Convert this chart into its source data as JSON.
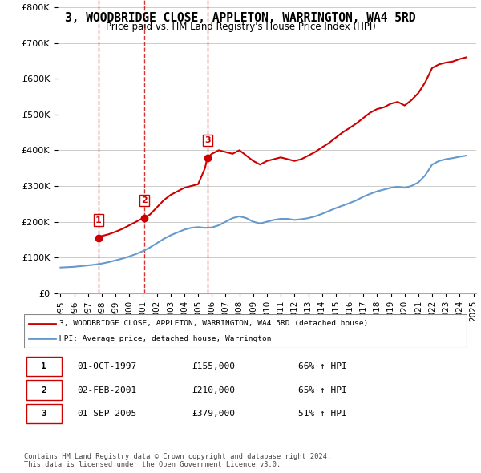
{
  "title": "3, WOODBRIDGE CLOSE, APPLETON, WARRINGTON, WA4 5RD",
  "subtitle": "Price paid vs. HM Land Registry's House Price Index (HPI)",
  "title_fontsize": 11,
  "subtitle_fontsize": 9,
  "sale_dates": [
    1997.75,
    2001.08,
    2005.67
  ],
  "sale_prices": [
    155000,
    210000,
    379000
  ],
  "sale_labels": [
    "1",
    "2",
    "3"
  ],
  "red_line_label": "3, WOODBRIDGE CLOSE, APPLETON, WARRINGTON, WA4 5RD (detached house)",
  "blue_line_label": "HPI: Average price, detached house, Warrington",
  "hpi_x": [
    1995,
    1995.5,
    1996,
    1996.5,
    1997,
    1997.5,
    1998,
    1998.5,
    1999,
    1999.5,
    2000,
    2000.5,
    2001,
    2001.5,
    2002,
    2002.5,
    2003,
    2003.5,
    2004,
    2004.5,
    2005,
    2005.5,
    2006,
    2006.5,
    2007,
    2007.5,
    2008,
    2008.5,
    2009,
    2009.5,
    2010,
    2010.5,
    2011,
    2011.5,
    2012,
    2012.5,
    2013,
    2013.5,
    2014,
    2014.5,
    2015,
    2015.5,
    2016,
    2016.5,
    2017,
    2017.5,
    2018,
    2018.5,
    2019,
    2019.5,
    2020,
    2020.5,
    2021,
    2021.5,
    2022,
    2022.5,
    2023,
    2023.5,
    2024,
    2024.5
  ],
  "hpi_y": [
    72000,
    73000,
    74000,
    76000,
    78000,
    80000,
    83000,
    87000,
    92000,
    97000,
    103000,
    110000,
    118000,
    128000,
    140000,
    152000,
    162000,
    170000,
    178000,
    183000,
    185000,
    183000,
    184000,
    190000,
    200000,
    210000,
    215000,
    210000,
    200000,
    195000,
    200000,
    205000,
    208000,
    208000,
    205000,
    207000,
    210000,
    215000,
    222000,
    230000,
    238000,
    245000,
    252000,
    260000,
    270000,
    278000,
    285000,
    290000,
    295000,
    298000,
    295000,
    300000,
    310000,
    330000,
    360000,
    370000,
    375000,
    378000,
    382000,
    385000
  ],
  "red_x": [
    1995,
    1995.5,
    1996,
    1996.5,
    1997,
    1997.5,
    1997.75,
    1997.75,
    1998,
    1998.5,
    1999,
    1999.5,
    2000,
    2000.5,
    2001,
    2001.08,
    2001.08,
    2001.5,
    2002,
    2002.5,
    2003,
    2003.5,
    2004,
    2004.5,
    2005,
    2005.5,
    2005.67,
    2005.67,
    2006,
    2006.5,
    2007,
    2007.5,
    2008,
    2008.5,
    2009,
    2009.5,
    2010,
    2010.5,
    2011,
    2011.5,
    2012,
    2012.5,
    2013,
    2013.5,
    2014,
    2014.5,
    2015,
    2015.5,
    2016,
    2016.5,
    2017,
    2017.5,
    2018,
    2018.5,
    2019,
    2019.5,
    2020,
    2020.5,
    2021,
    2021.5,
    2022,
    2022.5,
    2023,
    2023.5,
    2024,
    2024.5
  ],
  "red_y": [
    null,
    null,
    null,
    null,
    null,
    null,
    null,
    155000,
    160000,
    165000,
    172000,
    180000,
    190000,
    200000,
    210000,
    210000,
    210000,
    220000,
    240000,
    260000,
    275000,
    285000,
    295000,
    300000,
    305000,
    350000,
    379000,
    379000,
    390000,
    400000,
    395000,
    390000,
    400000,
    385000,
    370000,
    360000,
    370000,
    375000,
    380000,
    375000,
    370000,
    375000,
    385000,
    395000,
    408000,
    420000,
    435000,
    450000,
    462000,
    475000,
    490000,
    505000,
    515000,
    520000,
    530000,
    535000,
    525000,
    540000,
    560000,
    590000,
    630000,
    640000,
    645000,
    648000,
    655000,
    660000
  ],
  "vline_dates": [
    1997.75,
    2001.08,
    2005.67
  ],
  "vline_color": "#cc0000",
  "x_ticks": [
    1995,
    1996,
    1997,
    1998,
    1999,
    2000,
    2001,
    2002,
    2003,
    2004,
    2005,
    2006,
    2007,
    2008,
    2009,
    2010,
    2011,
    2012,
    2013,
    2014,
    2015,
    2016,
    2017,
    2018,
    2019,
    2020,
    2021,
    2022,
    2023,
    2024,
    2025
  ],
  "ylim": [
    0,
    820000
  ],
  "xlim": [
    1994.8,
    2025.2
  ],
  "table_data": [
    [
      "1",
      "01-OCT-1997",
      "£155,000",
      "66% ↑ HPI"
    ],
    [
      "2",
      "02-FEB-2001",
      "£210,000",
      "65% ↑ HPI"
    ],
    [
      "3",
      "01-SEP-2005",
      "£379,000",
      "51% ↑ HPI"
    ]
  ],
  "footer_text": "Contains HM Land Registry data © Crown copyright and database right 2024.\nThis data is licensed under the Open Government Licence v3.0.",
  "red_color": "#cc0000",
  "blue_color": "#6699cc",
  "bg_color": "#ffffff",
  "grid_color": "#cccccc"
}
